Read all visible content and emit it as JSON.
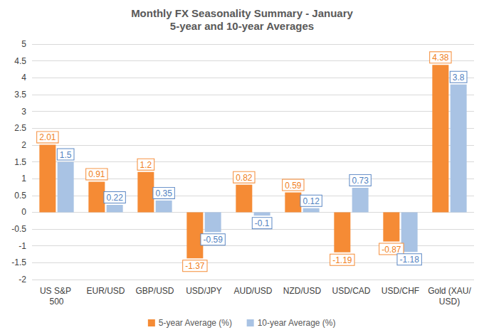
{
  "chart_data": {
    "type": "bar",
    "title": "Monthly FX Seasonality Summary - January",
    "subtitle": "5-year and 10-year Averages",
    "categories": [
      "US S&P 500",
      "EUR/USD",
      "GBP/USD",
      "USD/JPY",
      "AUD/USD",
      "NZD/USD",
      "USD/CAD",
      "USD/CHF",
      "Gold (XAU/USD)"
    ],
    "series": [
      {
        "name": "5-year Average (%)",
        "color": "#f58b35",
        "values": [
          2.01,
          0.91,
          1.2,
          -1.37,
          0.82,
          0.59,
          -1.19,
          -0.87,
          4.38
        ]
      },
      {
        "name": "10-year Average (%)",
        "color": "#a9c3e4",
        "values": [
          1.5,
          0.22,
          0.35,
          -0.59,
          -0.1,
          0.12,
          0.73,
          -1.18,
          3.8
        ]
      }
    ],
    "ylim": [
      -2,
      5
    ],
    "yticks": [
      -2,
      -1.5,
      -1,
      -0.5,
      0,
      0.5,
      1,
      1.5,
      2,
      2.5,
      3,
      3.5,
      4,
      4.5,
      5
    ],
    "grid": true,
    "legend": "bottom",
    "data_labels": true
  }
}
